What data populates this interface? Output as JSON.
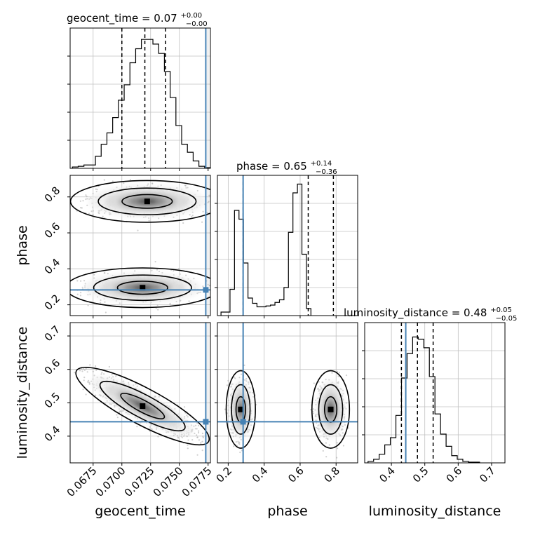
{
  "chart_data": {
    "type": "corner",
    "parameters": [
      {
        "name": "geocent_time",
        "label": "geocent_time",
        "range": [
          0.0655,
          0.0777
        ],
        "ticks": [
          "0.0675",
          "0.0700",
          "0.0725",
          "0.0750",
          "0.0775"
        ],
        "tick_values": [
          0.0675,
          0.07,
          0.0725,
          0.075,
          0.0775
        ],
        "truth": 0.0773,
        "quantiles": [
          0.07,
          0.072,
          0.0738
        ],
        "title": {
          "prefix": "geocent_time = 0.07",
          "sup": "+0.00",
          "sub": "−0.00"
        },
        "hist": {
          "start": 0.0657,
          "width": 0.0005,
          "counts": [
            2,
            3,
            5,
            5,
            18,
            36,
            53,
            76,
            102,
            125,
            158,
            179,
            193,
            193,
            186,
            172,
            145,
            106,
            64,
            36,
            24,
            11,
            3,
            1
          ],
          "ymax": 210
        }
      },
      {
        "name": "phase",
        "label": "phase",
        "range": [
          0.14,
          0.92
        ],
        "ticks": [
          "0.2",
          "0.4",
          "0.6",
          "0.8"
        ],
        "tick_values": [
          0.2,
          0.4,
          0.6,
          0.8
        ],
        "truth": 0.283,
        "quantiles": [
          0.283,
          0.645,
          0.785
        ],
        "title": {
          "prefix": "phase = 0.65",
          "sup": "+0.14",
          "sub": "−0.36"
        },
        "hist": {
          "start": 0.16,
          "width": 0.025,
          "counts": [
            4,
            4,
            30,
            120,
            110,
            60,
            20,
            14,
            10,
            10,
            11,
            12,
            15,
            18,
            32,
            95,
            140,
            150,
            70,
            8
          ],
          "ymax": 160
        }
      },
      {
        "name": "luminosity_distance",
        "label": "luminosity_distance",
        "range": [
          0.32,
          0.74
        ],
        "ticks": [
          "0.4",
          "0.5",
          "0.6",
          "0.7"
        ],
        "tick_values": [
          0.4,
          0.5,
          0.6,
          0.7
        ],
        "truth": 0.443,
        "quantiles": [
          0.43,
          0.478,
          0.525
        ],
        "title": {
          "prefix": "luminosity_distance = 0.48",
          "sup": "+0.05",
          "sub": "−0.05"
        },
        "hist": {
          "start": 0.33,
          "width": 0.0167,
          "counts": [
            2,
            5,
            12,
            25,
            35,
            66,
            118,
            152,
            175,
            172,
            160,
            120,
            68,
            40,
            23,
            10,
            5,
            2,
            1,
            1
          ],
          "ymax": 195
        }
      }
    ],
    "levels": [
      0.39,
      0.86,
      0.99
    ],
    "colors": {
      "contour": "#000000",
      "truth": "#4682b4",
      "grid": "#c0c0c0",
      "quantile": "#000000",
      "scatter": "#a9a9a9"
    }
  }
}
